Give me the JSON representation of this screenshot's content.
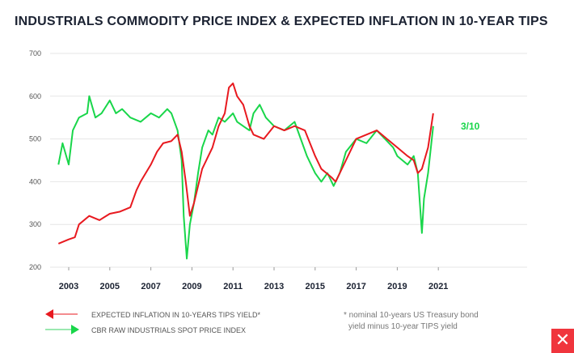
{
  "chart_data": {
    "type": "line",
    "title": "INDUSTRIALS COMMODITY PRICE INDEX & EXPECTED INFLATION IN 10-YEAR TIPS",
    "ylim": [
      200,
      700
    ],
    "yticks": [
      200,
      300,
      400,
      500,
      600,
      700
    ],
    "xlim": [
      2002,
      2024.5
    ],
    "xticks": [
      2003,
      2005,
      2007,
      2009,
      2011,
      2013,
      2015,
      2017,
      2019,
      2021
    ],
    "grid": true,
    "annotation": "3/10",
    "series": [
      {
        "name": "EXPECTED INFLATION IN 10-YEARS TIPS YIELD*",
        "color": "#e8191f",
        "points": [
          [
            2002.5,
            255
          ],
          [
            2003,
            265
          ],
          [
            2003.3,
            270
          ],
          [
            2003.5,
            300
          ],
          [
            2004,
            320
          ],
          [
            2004.5,
            310
          ],
          [
            2005,
            325
          ],
          [
            2005.5,
            330
          ],
          [
            2006,
            340
          ],
          [
            2006.3,
            380
          ],
          [
            2006.5,
            400
          ],
          [
            2007,
            440
          ],
          [
            2007.3,
            470
          ],
          [
            2007.6,
            490
          ],
          [
            2008,
            495
          ],
          [
            2008.3,
            510
          ],
          [
            2008.5,
            470
          ],
          [
            2008.7,
            400
          ],
          [
            2008.9,
            320
          ],
          [
            2009.1,
            350
          ],
          [
            2009.5,
            430
          ],
          [
            2009.8,
            460
          ],
          [
            2010,
            480
          ],
          [
            2010.3,
            530
          ],
          [
            2010.6,
            560
          ],
          [
            2010.8,
            620
          ],
          [
            2011,
            630
          ],
          [
            2011.2,
            600
          ],
          [
            2011.5,
            580
          ],
          [
            2011.8,
            530
          ],
          [
            2012,
            510
          ],
          [
            2012.5,
            500
          ],
          [
            2013,
            530
          ],
          [
            2013.5,
            520
          ],
          [
            2014,
            530
          ],
          [
            2014.5,
            520
          ],
          [
            2015,
            460
          ],
          [
            2015.3,
            430
          ],
          [
            2015.8,
            410
          ],
          [
            2016,
            400
          ],
          [
            2016.5,
            450
          ],
          [
            2017,
            500
          ],
          [
            2017.5,
            510
          ],
          [
            2018,
            520
          ],
          [
            2018.5,
            500
          ],
          [
            2019,
            480
          ],
          [
            2019.5,
            460
          ],
          [
            2019.8,
            450
          ],
          [
            2020,
            420
          ],
          [
            2020.2,
            430
          ],
          [
            2020.5,
            480
          ],
          [
            2020.75,
            560
          ]
        ]
      },
      {
        "name": "CBR RAW INDUSTRIALS SPOT PRICE INDEX",
        "color": "#19d64a",
        "points": [
          [
            2002.5,
            440
          ],
          [
            2002.7,
            490
          ],
          [
            2003,
            440
          ],
          [
            2003.2,
            520
          ],
          [
            2003.5,
            550
          ],
          [
            2003.9,
            560
          ],
          [
            2004,
            600
          ],
          [
            2004.3,
            550
          ],
          [
            2004.6,
            560
          ],
          [
            2005,
            590
          ],
          [
            2005.3,
            560
          ],
          [
            2005.6,
            570
          ],
          [
            2006,
            550
          ],
          [
            2006.5,
            540
          ],
          [
            2007,
            560
          ],
          [
            2007.4,
            550
          ],
          [
            2007.8,
            570
          ],
          [
            2008,
            560
          ],
          [
            2008.3,
            520
          ],
          [
            2008.5,
            450
          ],
          [
            2008.6,
            320
          ],
          [
            2008.75,
            220
          ],
          [
            2008.9,
            300
          ],
          [
            2009.1,
            350
          ],
          [
            2009.3,
            420
          ],
          [
            2009.5,
            480
          ],
          [
            2009.8,
            520
          ],
          [
            2010,
            510
          ],
          [
            2010.3,
            550
          ],
          [
            2010.6,
            540
          ],
          [
            2011,
            560
          ],
          [
            2011.2,
            540
          ],
          [
            2011.5,
            530
          ],
          [
            2011.8,
            520
          ],
          [
            2012,
            560
          ],
          [
            2012.3,
            580
          ],
          [
            2012.6,
            550
          ],
          [
            2013,
            530
          ],
          [
            2013.5,
            520
          ],
          [
            2014,
            540
          ],
          [
            2014.3,
            500
          ],
          [
            2014.6,
            460
          ],
          [
            2015,
            420
          ],
          [
            2015.3,
            400
          ],
          [
            2015.6,
            420
          ],
          [
            2015.9,
            390
          ],
          [
            2016.2,
            420
          ],
          [
            2016.5,
            470
          ],
          [
            2017,
            500
          ],
          [
            2017.5,
            490
          ],
          [
            2018,
            520
          ],
          [
            2018.4,
            500
          ],
          [
            2018.8,
            480
          ],
          [
            2019,
            460
          ],
          [
            2019.5,
            440
          ],
          [
            2019.8,
            460
          ],
          [
            2020,
            420
          ],
          [
            2020.2,
            280
          ],
          [
            2020.3,
            360
          ],
          [
            2020.5,
            420
          ],
          [
            2020.75,
            530
          ]
        ]
      }
    ],
    "footnote": [
      "* nominal 10-years US Treasury bond",
      "yield minus 10-year TIPS yield"
    ]
  },
  "logo": "X"
}
